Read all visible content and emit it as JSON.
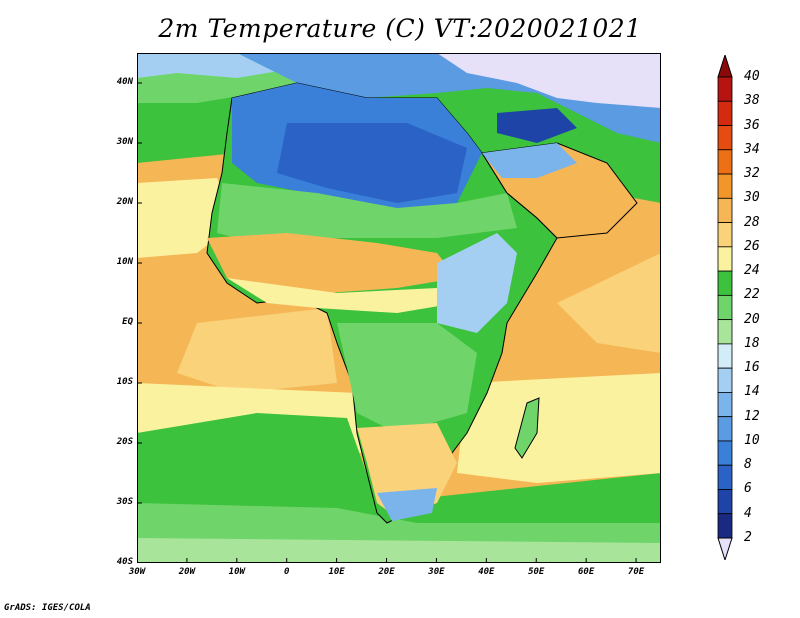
{
  "title": "2m Temperature (C) VT:2020021021",
  "footer": "GrADS: IGES/COLA",
  "map": {
    "projection": "lat-lon",
    "lon_range": [
      -30,
      75
    ],
    "lat_range": [
      -40,
      45
    ],
    "field": "2m temperature",
    "units": "C",
    "x_ticks": [
      {
        "value": -30,
        "label": "30W"
      },
      {
        "value": -20,
        "label": "20W"
      },
      {
        "value": -10,
        "label": "10W"
      },
      {
        "value": 0,
        "label": "0"
      },
      {
        "value": 10,
        "label": "10E"
      },
      {
        "value": 20,
        "label": "20E"
      },
      {
        "value": 30,
        "label": "30E"
      },
      {
        "value": 40,
        "label": "40E"
      },
      {
        "value": 50,
        "label": "50E"
      },
      {
        "value": 60,
        "label": "60E"
      },
      {
        "value": 70,
        "label": "70E"
      }
    ],
    "y_ticks": [
      {
        "value": 40,
        "label": "40N"
      },
      {
        "value": 30,
        "label": "30N"
      },
      {
        "value": 20,
        "label": "20N"
      },
      {
        "value": 10,
        "label": "10N"
      },
      {
        "value": 0,
        "label": "EQ"
      },
      {
        "value": -10,
        "label": "10S"
      },
      {
        "value": -20,
        "label": "20S"
      },
      {
        "value": -30,
        "label": "30S"
      },
      {
        "value": -40,
        "label": "40S"
      }
    ]
  },
  "colorbar": {
    "levels": [
      "2",
      "4",
      "6",
      "8",
      "10",
      "12",
      "14",
      "16",
      "18",
      "20",
      "22",
      "24",
      "26",
      "28",
      "30",
      "32",
      "34",
      "36",
      "38",
      "40"
    ],
    "colors": {
      "below_2": "#e6e0f8",
      "2-4": "#1a2a80",
      "4-6": "#1f44a8",
      "6-8": "#2a62c6",
      "8-10": "#3a7fd8",
      "10-12": "#5a9be2",
      "12-14": "#7bb4ea",
      "14-16": "#a5cff2",
      "16-18": "#d2ecf8",
      "18-20": "#a8e49a",
      "20-22": "#6fd56a",
      "22-24": "#3cc23c",
      "24-26": "#fbf2a0",
      "26-28": "#f9d27a",
      "28-30": "#f5b655",
      "30-32": "#f0962a",
      "32-34": "#ec7015",
      "34-36": "#e54c12",
      "36-38": "#d42a10",
      "38-40": "#b61410",
      "above_40": "#8a0a0a"
    }
  }
}
